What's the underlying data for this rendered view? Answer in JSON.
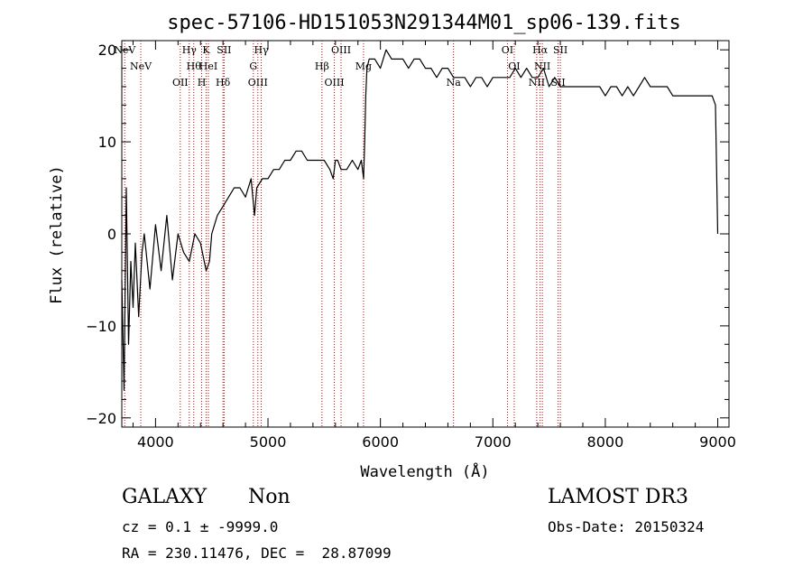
{
  "chart_data": {
    "type": "line",
    "title": "spec-57106-HD151053N291344M01_sp06-139.fits",
    "xlabel": "Wavelength (Å)",
    "ylabel": "Flux (relative)",
    "xlim": [
      3700,
      9100
    ],
    "ylim": [
      -21,
      21
    ],
    "xticks": [
      "4000",
      "5000",
      "6000",
      "7000",
      "8000",
      "9000"
    ],
    "yticks": [
      "-20",
      "-10",
      "0",
      "10",
      "20"
    ],
    "grid": false,
    "series": [
      {
        "x": [
          3700,
          3720,
          3740,
          3760,
          3780,
          3800,
          3820,
          3850,
          3880,
          3900,
          3950,
          4000,
          4050,
          4100,
          4150,
          4200,
          4250,
          4300,
          4350,
          4400,
          4450,
          4480,
          4500,
          4550,
          4600,
          4650,
          4700,
          4750,
          4800,
          4850,
          4880,
          4900,
          4950,
          5000,
          5050,
          5100,
          5150,
          5200,
          5250,
          5300,
          5350,
          5400,
          5450,
          5500,
          5550,
          5580,
          5600,
          5620,
          5650,
          5700,
          5750,
          5800,
          5830,
          5850,
          5860,
          5870,
          5880,
          5900,
          5950,
          6000,
          6050,
          6100,
          6150,
          6200,
          6250,
          6300,
          6350,
          6400,
          6450,
          6500,
          6550,
          6600,
          6650,
          6700,
          6750,
          6800,
          6850,
          6900,
          6950,
          7000,
          7050,
          7100,
          7150,
          7200,
          7250,
          7300,
          7350,
          7400,
          7450,
          7500,
          7550,
          7600,
          7650,
          7700,
          7750,
          7800,
          7850,
          7900,
          7950,
          8000,
          8050,
          8100,
          8150,
          8200,
          8250,
          8300,
          8350,
          8400,
          8450,
          8500,
          8550,
          8600,
          8650,
          8700,
          8750,
          8800,
          8850,
          8900,
          8950,
          8980,
          9000
        ],
        "y": [
          -5,
          -17,
          5,
          -12,
          -3,
          -8,
          -1,
          -9,
          -2,
          0,
          -6,
          1,
          -4,
          2,
          -5,
          0,
          -2,
          -3,
          0,
          -1,
          -4,
          -3,
          0,
          2,
          3,
          4,
          5,
          5,
          4,
          6,
          2,
          5,
          6,
          6,
          7,
          7,
          8,
          8,
          9,
          9,
          8,
          8,
          8,
          8,
          7,
          6,
          8,
          8,
          7,
          7,
          8,
          7,
          8,
          6,
          10,
          15,
          18,
          19,
          19,
          18,
          20,
          19,
          19,
          19,
          18,
          19,
          19,
          18,
          18,
          17,
          18,
          18,
          17,
          17,
          17,
          16,
          17,
          17,
          16,
          17,
          17,
          17,
          17,
          18,
          17,
          18,
          17,
          17,
          18,
          16,
          17,
          16,
          16,
          16,
          16,
          16,
          16,
          16,
          16,
          15,
          16,
          16,
          15,
          16,
          15,
          16,
          17,
          16,
          16,
          16,
          16,
          15,
          15,
          15,
          15,
          15,
          15,
          15,
          15,
          14,
          0
        ]
      }
    ],
    "lines": [
      {
        "label": "NeV",
        "x": 3726
      },
      {
        "label": "NeV",
        "x": 3869
      },
      {
        "label": "OII",
        "x": 4220
      },
      {
        "label": "Hγ",
        "x": 4300
      },
      {
        "label": "Hθ",
        "x": 4340
      },
      {
        "label": "H",
        "x": 4410
      },
      {
        "label": "K",
        "x": 4450
      },
      {
        "label": "HeI",
        "x": 4470
      },
      {
        "label": "Hδ",
        "x": 4600
      },
      {
        "label": "SII",
        "x": 4610
      },
      {
        "label": "G",
        "x": 4870
      },
      {
        "label": "OIII",
        "x": 4910
      },
      {
        "label": "Hγ",
        "x": 4940
      },
      {
        "label": "Hβ",
        "x": 5480
      },
      {
        "label": "OIII",
        "x": 5590
      },
      {
        "label": "OIII",
        "x": 5650
      },
      {
        "label": "Mg",
        "x": 5850
      },
      {
        "label": "Na",
        "x": 6650
      },
      {
        "label": "OI",
        "x": 7130
      },
      {
        "label": "OI",
        "x": 7190
      },
      {
        "label": "NII",
        "x": 7390
      },
      {
        "label": "Hα",
        "x": 7420
      },
      {
        "label": "NII",
        "x": 7440
      },
      {
        "label": "SII",
        "x": 7580
      },
      {
        "label": "SII",
        "x": 7600
      }
    ]
  },
  "info": {
    "object_class": "GALAXY",
    "subclass": "Non",
    "survey": "LAMOST DR3",
    "cz": "cz = 0.1 ± -9999.0",
    "obs_date": "Obs-Date: 20150324",
    "coords": "RA = 230.11476, DEC =  28.87099"
  }
}
